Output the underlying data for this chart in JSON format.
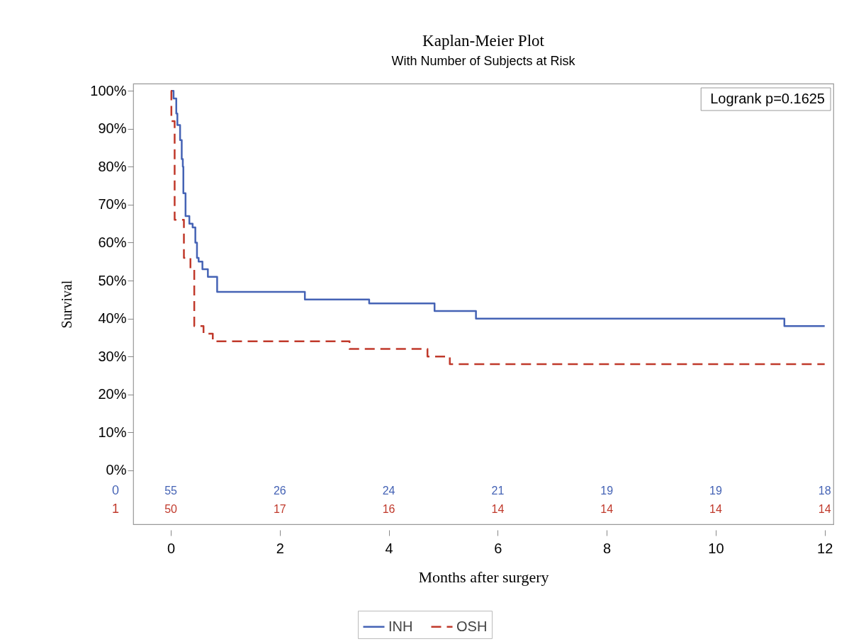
{
  "chart_data": {
    "type": "step",
    "title": "Kaplan-Meier Plot",
    "subtitle": "With Number of Subjects at Risk",
    "xlabel": "Months after surgery",
    "ylabel": "Survival",
    "series": [
      {
        "name": "INH",
        "color": "#4563b5",
        "line_style": "solid",
        "x": [
          0,
          0.05,
          0.1,
          0.12,
          0.17,
          0.2,
          0.22,
          0.23,
          0.27,
          0.34,
          0.4,
          0.45,
          0.48,
          0.51,
          0.58,
          0.68,
          0.85,
          2.46,
          3.64,
          4.84,
          5.6,
          11.26,
          12
        ],
        "values": [
          100,
          98,
          94,
          91,
          87,
          82,
          80,
          73,
          67,
          65,
          64,
          60,
          56,
          55,
          53,
          51,
          47,
          45,
          44,
          42,
          40,
          38,
          38
        ]
      },
      {
        "name": "OSH",
        "color": "#c0392b",
        "line_style": "dashed",
        "x": [
          0,
          0.01,
          0.07,
          0.24,
          0.36,
          0.43,
          0.6,
          0.77,
          3.28,
          4.71,
          5.12,
          12
        ],
        "values": [
          100,
          92,
          66,
          56,
          53,
          38,
          36,
          34,
          32,
          30,
          28,
          28
        ]
      }
    ],
    "xlim": [
      -0.69,
      12.16
    ],
    "xticks": [
      0,
      2,
      4,
      6,
      8,
      10,
      12
    ],
    "ylim": [
      -14.2,
      101.9
    ],
    "yticks": [
      {
        "value": 0,
        "label": "0%"
      },
      {
        "value": 10,
        "label": "10%"
      },
      {
        "value": 20,
        "label": "20%"
      },
      {
        "value": 30,
        "label": "30%"
      },
      {
        "value": 40,
        "label": "40%"
      },
      {
        "value": 50,
        "label": "50%"
      },
      {
        "value": 60,
        "label": "60%"
      },
      {
        "value": 70,
        "label": "70%"
      },
      {
        "value": 80,
        "label": "80%"
      },
      {
        "value": 90,
        "label": "90%"
      },
      {
        "value": 100,
        "label": "100%"
      }
    ],
    "grid": false,
    "legend": "bottom",
    "annotations": [
      "Logrank p=0.1625",
      "0",
      "55",
      "26",
      "24",
      "21",
      "19",
      "19",
      "18",
      "1",
      "50",
      "17",
      "16",
      "14",
      "14",
      "14",
      "14"
    ]
  }
}
